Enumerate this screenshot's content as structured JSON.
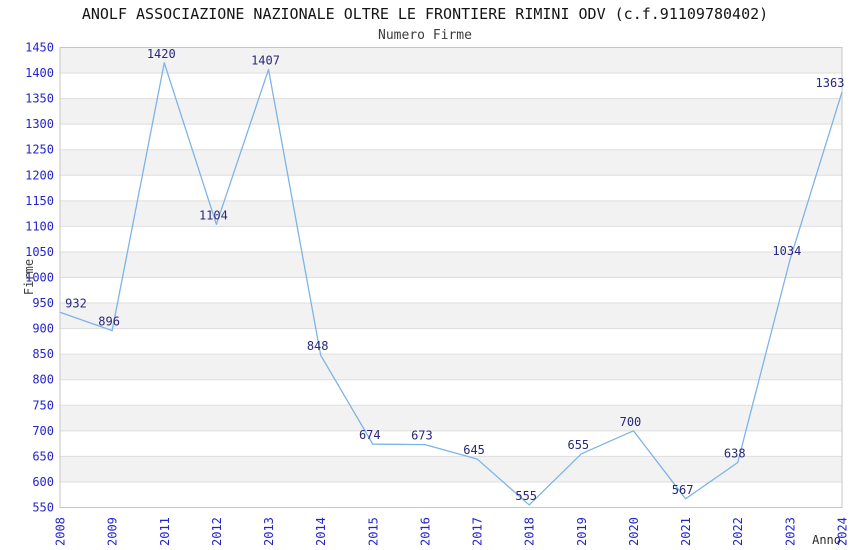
{
  "chart_data": {
    "type": "line",
    "title": "ANOLF ASSOCIAZIONE NAZIONALE OLTRE LE FRONTIERE RIMINI ODV (c.f.91109780402)",
    "subtitle": "Numero Firme",
    "xlabel": "Anno",
    "ylabel": "Firme",
    "categories": [
      "2008",
      "2009",
      "2011",
      "2012",
      "2013",
      "2014",
      "2015",
      "2016",
      "2017",
      "2018",
      "2019",
      "2020",
      "2021",
      "2022",
      "2023",
      "2024"
    ],
    "values": [
      932,
      896,
      1420,
      1104,
      1407,
      848,
      674,
      673,
      645,
      555,
      655,
      700,
      567,
      638,
      1034,
      1363
    ],
    "ylim": [
      550,
      1450
    ],
    "ytick_step": 50,
    "grid": true,
    "legend_position": "none",
    "banded_background": true,
    "data_labels_shown": true,
    "colors": {
      "line": "#7db4e8",
      "tick_labels": "#2424cc",
      "data_labels": "#28287a",
      "band": "#f2f2f2",
      "grid": "#dedede",
      "border": "#c6c6c6",
      "title": "#141414",
      "axis_titles": "#3c3c3c",
      "background": "#ffffff"
    }
  }
}
